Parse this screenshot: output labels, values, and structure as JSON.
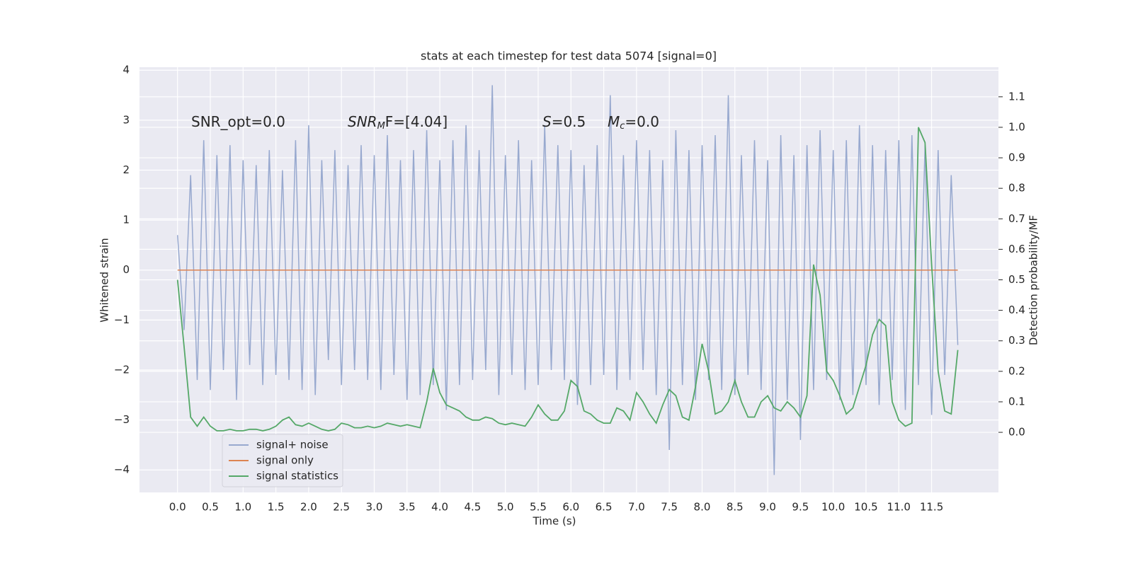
{
  "chart_data": {
    "type": "line",
    "title": "stats at each timestep for test data 5074 [signal=0]",
    "xlabel": "Time (s)",
    "ylabel": "Whitened strain",
    "y2label": "Detection probability/MF",
    "annotations": [
      {
        "base": "SNR_opt=0.0"
      },
      {
        "base": "SNR",
        "sub": "M",
        "tail": "F=[4.04]",
        "italic": true
      },
      {
        "base": "S",
        "tail": "=0.5",
        "italic": true
      },
      {
        "base": "M",
        "sub": "c",
        "tail": "=0.0",
        "italic": true
      }
    ],
    "x": [
      0,
      0.1,
      0.2,
      0.3,
      0.4,
      0.5,
      0.6,
      0.7,
      0.8,
      0.9,
      1,
      1.1,
      1.2,
      1.3,
      1.4,
      1.5,
      1.6,
      1.7,
      1.8,
      1.9,
      2,
      2.1,
      2.2,
      2.3,
      2.4,
      2.5,
      2.6,
      2.7,
      2.8,
      2.9,
      3,
      3.1,
      3.2,
      3.3,
      3.4,
      3.5,
      3.6,
      3.7,
      3.8,
      3.9,
      4,
      4.1,
      4.2,
      4.3,
      4.4,
      4.5,
      4.6,
      4.7,
      4.8,
      4.9,
      5,
      5.1,
      5.2,
      5.3,
      5.4,
      5.5,
      5.6,
      5.7,
      5.8,
      5.9,
      6,
      6.1,
      6.2,
      6.3,
      6.4,
      6.5,
      6.6,
      6.7,
      6.8,
      6.9,
      7,
      7.1,
      7.2,
      7.3,
      7.4,
      7.5,
      7.6,
      7.7,
      7.8,
      7.9,
      8,
      8.1,
      8.2,
      8.3,
      8.4,
      8.5,
      8.6,
      8.7,
      8.8,
      8.9,
      9,
      9.1,
      9.2,
      9.3,
      9.4,
      9.5,
      9.6,
      9.7,
      9.8,
      9.9,
      10,
      10.1,
      10.2,
      10.3,
      10.4,
      10.5,
      10.6,
      10.7,
      10.8,
      10.9,
      11,
      11.1,
      11.2,
      11.3,
      11.4,
      11.5,
      11.6,
      11.7,
      11.8,
      11.9
    ],
    "series": [
      {
        "name": "signal+ noise",
        "color": "#98a9cf",
        "axis": "y",
        "values": [
          0.7,
          -1.2,
          1.9,
          -2.2,
          2.6,
          -2.4,
          2.3,
          -2.0,
          2.5,
          -2.6,
          2.2,
          -1.9,
          2.1,
          -2.3,
          2.4,
          -2.1,
          2.0,
          -2.2,
          2.6,
          -2.4,
          2.9,
          -2.5,
          2.2,
          -1.8,
          2.4,
          -2.3,
          2.1,
          -2.0,
          2.5,
          -2.2,
          2.3,
          -2.4,
          2.7,
          -2.1,
          2.2,
          -2.6,
          2.4,
          -2.5,
          2.8,
          -2.3,
          2.2,
          -2.8,
          2.6,
          -2.3,
          2.9,
          -2.2,
          2.4,
          -2.0,
          3.7,
          -2.5,
          2.3,
          -2.1,
          2.6,
          -2.4,
          2.2,
          -2.3,
          2.9,
          -2.0,
          2.5,
          -2.2,
          2.4,
          -2.7,
          2.1,
          -2.3,
          2.5,
          -2.1,
          3.5,
          -2.4,
          2.3,
          -2.2,
          2.6,
          -2.0,
          2.4,
          -2.5,
          2.2,
          -3.6,
          2.8,
          -2.3,
          2.4,
          -2.6,
          2.5,
          -2.2,
          2.7,
          -2.4,
          3.5,
          -2.5,
          2.3,
          -2.1,
          2.6,
          -2.4,
          2.2,
          -4.1,
          2.7,
          -2.6,
          2.3,
          -3.4,
          2.5,
          -2.4,
          2.8,
          -2.2,
          2.4,
          -2.6,
          2.6,
          -2.5,
          2.9,
          -2.3,
          2.5,
          -2.7,
          2.4,
          -2.2,
          2.6,
          -2.8,
          2.7,
          -2.3,
          2.5,
          -2.9,
          2.4,
          -2.1,
          1.9,
          -1.5
        ]
      },
      {
        "name": "signal only",
        "color": "#dd8452",
        "axis": "y",
        "values": [
          0,
          0,
          0,
          0,
          0,
          0,
          0,
          0,
          0,
          0,
          0,
          0,
          0,
          0,
          0,
          0,
          0,
          0,
          0,
          0,
          0,
          0,
          0,
          0,
          0,
          0,
          0,
          0,
          0,
          0,
          0,
          0,
          0,
          0,
          0,
          0,
          0,
          0,
          0,
          0,
          0,
          0,
          0,
          0,
          0,
          0,
          0,
          0,
          0,
          0,
          0,
          0,
          0,
          0,
          0,
          0,
          0,
          0,
          0,
          0,
          0,
          0,
          0,
          0,
          0,
          0,
          0,
          0,
          0,
          0,
          0,
          0,
          0,
          0,
          0,
          0,
          0,
          0,
          0,
          0,
          0,
          0,
          0,
          0,
          0,
          0,
          0,
          0,
          0,
          0,
          0,
          0,
          0,
          0,
          0,
          0,
          0,
          0,
          0,
          0,
          0,
          0,
          0,
          0,
          0,
          0,
          0,
          0,
          0,
          0,
          0,
          0,
          0,
          0,
          0,
          0,
          0,
          0,
          0,
          0
        ]
      },
      {
        "name": "signal statistics",
        "color": "#55a868",
        "axis": "y2",
        "values": [
          0.5,
          0.28,
          0.05,
          0.02,
          0.05,
          0.02,
          0.005,
          0.005,
          0.01,
          0.005,
          0.005,
          0.01,
          0.01,
          0.005,
          0.01,
          0.02,
          0.04,
          0.05,
          0.025,
          0.02,
          0.03,
          0.02,
          0.01,
          0.005,
          0.01,
          0.03,
          0.025,
          0.015,
          0.015,
          0.02,
          0.015,
          0.02,
          0.03,
          0.025,
          0.02,
          0.025,
          0.02,
          0.015,
          0.1,
          0.21,
          0.13,
          0.09,
          0.08,
          0.07,
          0.05,
          0.04,
          0.04,
          0.05,
          0.045,
          0.03,
          0.025,
          0.03,
          0.025,
          0.02,
          0.05,
          0.09,
          0.06,
          0.04,
          0.04,
          0.07,
          0.17,
          0.15,
          0.07,
          0.06,
          0.04,
          0.03,
          0.03,
          0.08,
          0.07,
          0.04,
          0.13,
          0.1,
          0.06,
          0.03,
          0.09,
          0.14,
          0.12,
          0.05,
          0.04,
          0.15,
          0.29,
          0.2,
          0.06,
          0.07,
          0.1,
          0.17,
          0.1,
          0.05,
          0.05,
          0.1,
          0.12,
          0.08,
          0.07,
          0.1,
          0.08,
          0.05,
          0.12,
          0.55,
          0.45,
          0.2,
          0.17,
          0.12,
          0.06,
          0.08,
          0.15,
          0.22,
          0.32,
          0.37,
          0.35,
          0.1,
          0.04,
          0.02,
          0.03,
          1.0,
          0.95,
          0.55,
          0.2,
          0.07,
          0.06,
          0.27
        ]
      }
    ],
    "xlim": [
      -0.58,
      12.52
    ],
    "ylim": [
      -4.45,
      4.06
    ],
    "y2lim": [
      -0.197,
      1.197
    ],
    "xticks": [
      {
        "value": 0,
        "label": "0.0"
      },
      {
        "value": 0.5,
        "label": "0.5"
      },
      {
        "value": 1,
        "label": "1.0"
      },
      {
        "value": 1.5,
        "label": "1.5"
      },
      {
        "value": 2,
        "label": "2.0"
      },
      {
        "value": 2.5,
        "label": "2.5"
      },
      {
        "value": 3,
        "label": "3.0"
      },
      {
        "value": 3.5,
        "label": "3.5"
      },
      {
        "value": 4,
        "label": "4.0"
      },
      {
        "value": 4.5,
        "label": "4.5"
      },
      {
        "value": 5,
        "label": "5.0"
      },
      {
        "value": 5.5,
        "label": "5.5"
      },
      {
        "value": 6,
        "label": "6.0"
      },
      {
        "value": 6.5,
        "label": "6.5"
      },
      {
        "value": 7,
        "label": "7.0"
      },
      {
        "value": 7.5,
        "label": "7.5"
      },
      {
        "value": 8,
        "label": "8.0"
      },
      {
        "value": 8.5,
        "label": "8.5"
      },
      {
        "value": 9,
        "label": "9.0"
      },
      {
        "value": 9.5,
        "label": "9.5"
      },
      {
        "value": 10,
        "label": "10.0"
      },
      {
        "value": 10.5,
        "label": "10.5"
      },
      {
        "value": 11,
        "label": "11.0"
      },
      {
        "value": 11.5,
        "label": "11.5"
      }
    ],
    "yticks": [
      {
        "value": -4,
        "label": "−4"
      },
      {
        "value": -3,
        "label": "−3"
      },
      {
        "value": -2,
        "label": "−2"
      },
      {
        "value": -1,
        "label": "−1"
      },
      0,
      1,
      2,
      3,
      4
    ],
    "y2ticks": [
      {
        "value": 0,
        "label": "0.0"
      },
      0.1,
      0.2,
      0.3,
      0.4,
      0.5,
      0.6,
      0.7,
      0.8,
      0.9,
      {
        "value": 1,
        "label": "1.0"
      },
      1.1
    ],
    "grid": true,
    "legend": "lower left",
    "background": "#eaeaf2"
  }
}
